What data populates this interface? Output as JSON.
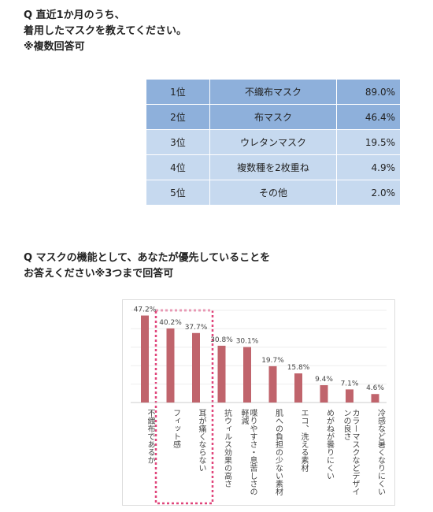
{
  "question1": {
    "lines": [
      "Q 直近1か月のうち、",
      "着用したマスクを教えてください。",
      "※複数回答可"
    ]
  },
  "table": {
    "rows": [
      [
        "1位",
        "不織布マスク",
        "89.0%"
      ],
      [
        "2位",
        "布マスク",
        "46.4%"
      ],
      [
        "3位",
        "ウレタンマスク",
        "19.5%"
      ],
      [
        "4位",
        "複数種を2枚重ね",
        "4.9%"
      ],
      [
        "5位",
        "その他",
        "2.0%"
      ]
    ]
  },
  "question2": {
    "lines": [
      "Q マスクの機能として、あなたが優先していることを",
      "お答えください※3つまで回答可"
    ]
  },
  "chart_data": {
    "type": "bar",
    "categories": [
      "不織布であるか",
      "フィット感",
      "耳が痛くならない",
      "抗ウィルス効果の高さ",
      "喋りやすさ・息苦しさの軽減",
      "肌への負担の少ない素材",
      "エコ、洗える素材",
      "めがねが曇りにくい",
      "カラーマスクなどデザインの良さ",
      "冷感など暑くなりにくい"
    ],
    "values": [
      47.2,
      40.2,
      37.7,
      30.8,
      30.1,
      19.7,
      15.8,
      9.4,
      7.1,
      4.6
    ],
    "value_labels": [
      "47.2%",
      "40.2%",
      "37.7%",
      "30.8%",
      "30.1%",
      "19.7%",
      "15.8%",
      "9.4%",
      "7.1%",
      "4.6%"
    ],
    "color": "#c0646c",
    "ylim": [
      0,
      50
    ]
  }
}
